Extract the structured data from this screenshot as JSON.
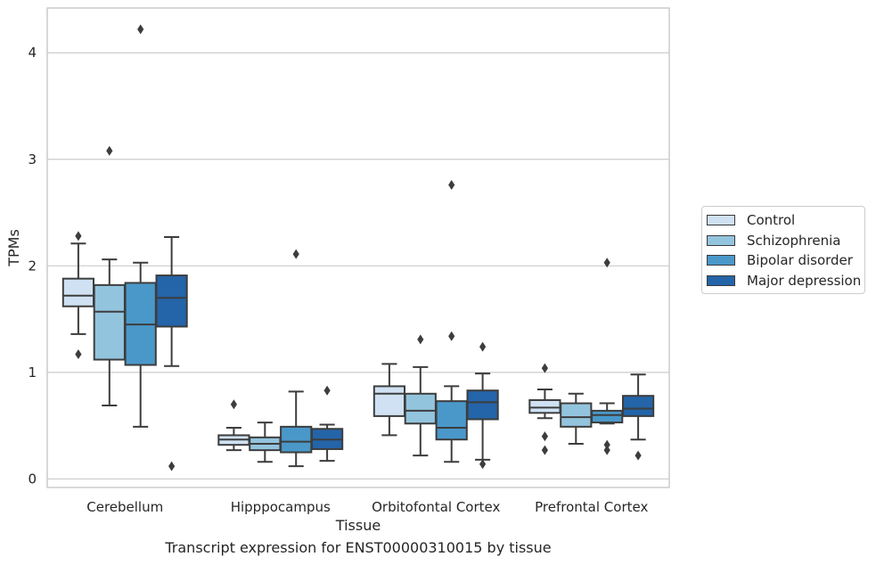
{
  "chart_data": {
    "type": "box",
    "title": "",
    "caption": "Transcript expression for ENST00000310015 by tissue",
    "xlabel": "Tissue",
    "ylabel": "TPMs",
    "ylim": [
      -0.08,
      4.42
    ],
    "yticks": [
      0,
      1,
      2,
      3,
      4
    ],
    "grid": "horizontal",
    "legend_position": "right",
    "categories": [
      "Cerebellum",
      "Hipppocampus",
      "Orbitofontal Cortex",
      "Prefrontal Cortex"
    ],
    "series": [
      {
        "name": "Control",
        "color": "#cfe1f2",
        "boxes": [
          {
            "min": 1.36,
            "q1": 1.62,
            "median": 1.72,
            "q3": 1.88,
            "max": 2.21,
            "outliers": [
              2.28,
              1.17
            ]
          },
          {
            "min": 0.27,
            "q1": 0.32,
            "median": 0.37,
            "q3": 0.41,
            "max": 0.48,
            "outliers": [
              0.7
            ]
          },
          {
            "min": 0.41,
            "q1": 0.59,
            "median": 0.8,
            "q3": 0.87,
            "max": 1.08,
            "outliers": []
          },
          {
            "min": 0.57,
            "q1": 0.62,
            "median": 0.67,
            "q3": 0.74,
            "max": 0.84,
            "outliers": [
              1.04,
              0.4,
              0.27
            ]
          }
        ]
      },
      {
        "name": "Schizophrenia",
        "color": "#93c4de",
        "boxes": [
          {
            "min": 0.69,
            "q1": 1.12,
            "median": 1.57,
            "q3": 1.82,
            "max": 2.06,
            "outliers": [
              3.08
            ]
          },
          {
            "min": 0.16,
            "q1": 0.27,
            "median": 0.33,
            "q3": 0.39,
            "max": 0.53,
            "outliers": []
          },
          {
            "min": 0.22,
            "q1": 0.52,
            "median": 0.64,
            "q3": 0.8,
            "max": 1.05,
            "outliers": [
              1.31
            ]
          },
          {
            "min": 0.33,
            "q1": 0.49,
            "median": 0.58,
            "q3": 0.71,
            "max": 0.8,
            "outliers": []
          }
        ]
      },
      {
        "name": "Bipolar disorder",
        "color": "#4a98c9",
        "boxes": [
          {
            "min": 0.49,
            "q1": 1.07,
            "median": 1.45,
            "q3": 1.84,
            "max": 2.03,
            "outliers": [
              4.22
            ]
          },
          {
            "min": 0.12,
            "q1": 0.25,
            "median": 0.35,
            "q3": 0.49,
            "max": 0.82,
            "outliers": [
              2.11
            ]
          },
          {
            "min": 0.16,
            "q1": 0.37,
            "median": 0.48,
            "q3": 0.73,
            "max": 0.87,
            "outliers": [
              2.76,
              1.34
            ]
          },
          {
            "min": 0.52,
            "q1": 0.53,
            "median": 0.6,
            "q3": 0.64,
            "max": 0.71,
            "outliers": [
              2.03,
              0.32,
              0.27
            ]
          }
        ]
      },
      {
        "name": "Major depression",
        "color": "#2464a8",
        "boxes": [
          {
            "min": 1.06,
            "q1": 1.43,
            "median": 1.7,
            "q3": 1.91,
            "max": 2.27,
            "outliers": [
              0.12
            ]
          },
          {
            "min": 0.17,
            "q1": 0.28,
            "median": 0.37,
            "q3": 0.47,
            "max": 0.51,
            "outliers": [
              0.83
            ]
          },
          {
            "min": 0.18,
            "q1": 0.56,
            "median": 0.72,
            "q3": 0.83,
            "max": 0.99,
            "outliers": [
              1.24,
              0.14
            ]
          },
          {
            "min": 0.37,
            "q1": 0.59,
            "median": 0.66,
            "q3": 0.78,
            "max": 0.98,
            "outliers": [
              0.22
            ]
          }
        ]
      }
    ]
  }
}
